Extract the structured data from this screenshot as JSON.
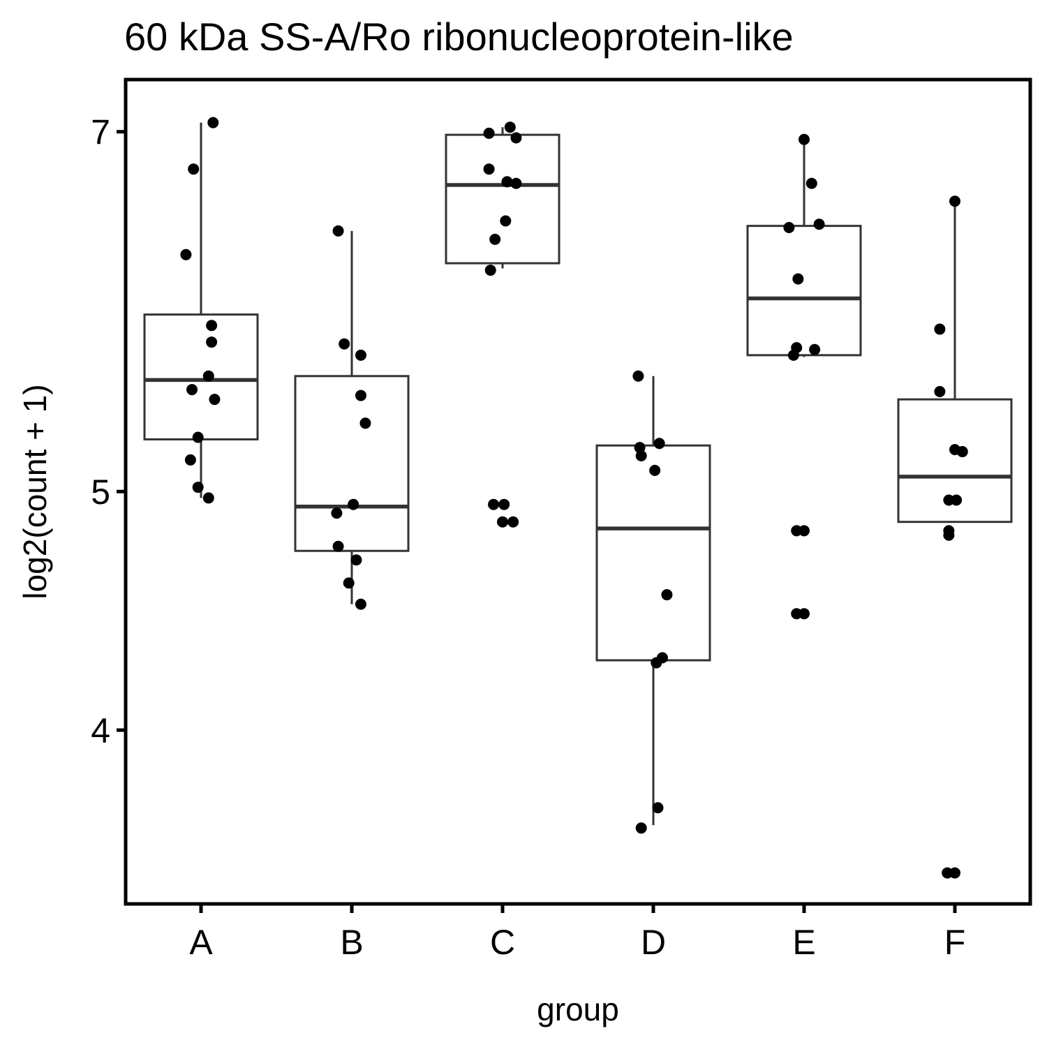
{
  "chart_data": {
    "type": "boxplot",
    "title": "60 kDa SS-A/Ro ribonucleoprotein-like",
    "xlabel": "group",
    "ylabel": "log2(count + 1)",
    "scale": "log2",
    "y_ticks": [
      4,
      5,
      7
    ],
    "ylim": [
      3.4,
      7.35
    ],
    "grid": false,
    "legend": "none",
    "colors": {
      "box_stroke": "#333333",
      "point": "#000000",
      "frame": "#000000"
    },
    "categories": [
      "A",
      "B",
      "C",
      "D",
      "E",
      "F"
    ],
    "boxes": [
      {
        "group": "A",
        "whisker_low": 4.97,
        "q1": 5.25,
        "median": 5.55,
        "q3": 5.9,
        "whisker_high": 7.06
      },
      {
        "group": "B",
        "whisker_low": 4.5,
        "q1": 4.73,
        "median": 4.93,
        "q3": 5.57,
        "whisker_high": 6.38
      },
      {
        "group": "C",
        "whisker_low": 6.16,
        "q1": 6.19,
        "median": 6.66,
        "q3": 6.98,
        "whisker_high": 7.03
      },
      {
        "group": "D",
        "whisker_low": 3.66,
        "q1": 4.27,
        "median": 4.83,
        "q3": 5.22,
        "whisker_high": 5.57
      },
      {
        "group": "E",
        "whisker_low": 5.67,
        "q1": 5.68,
        "median": 5.99,
        "q3": 6.41,
        "whisker_high": 6.95
      },
      {
        "group": "F",
        "whisker_low": 4.86,
        "q1": 4.86,
        "median": 5.07,
        "q3": 5.45,
        "whisker_high": 6.56
      }
    ],
    "points": [
      {
        "group": "A",
        "dx": 0.08,
        "y": 7.06
      },
      {
        "group": "A",
        "dx": -0.05,
        "y": 6.76
      },
      {
        "group": "A",
        "dx": -0.1,
        "y": 6.24
      },
      {
        "group": "A",
        "dx": 0.07,
        "y": 5.84
      },
      {
        "group": "A",
        "dx": 0.07,
        "y": 5.75
      },
      {
        "group": "A",
        "dx": 0.05,
        "y": 5.57
      },
      {
        "group": "A",
        "dx": -0.06,
        "y": 5.5
      },
      {
        "group": "A",
        "dx": 0.09,
        "y": 5.45
      },
      {
        "group": "A",
        "dx": -0.02,
        "y": 5.26
      },
      {
        "group": "A",
        "dx": -0.07,
        "y": 5.15
      },
      {
        "group": "A",
        "dx": -0.02,
        "y": 5.02
      },
      {
        "group": "A",
        "dx": 0.05,
        "y": 4.97
      },
      {
        "group": "B",
        "dx": -0.09,
        "y": 6.38
      },
      {
        "group": "B",
        "dx": -0.05,
        "y": 5.74
      },
      {
        "group": "B",
        "dx": 0.06,
        "y": 5.68
      },
      {
        "group": "B",
        "dx": 0.06,
        "y": 5.47
      },
      {
        "group": "B",
        "dx": 0.09,
        "y": 5.33
      },
      {
        "group": "B",
        "dx": 0.01,
        "y": 4.94
      },
      {
        "group": "B",
        "dx": -0.1,
        "y": 4.9
      },
      {
        "group": "B",
        "dx": -0.09,
        "y": 4.75
      },
      {
        "group": "B",
        "dx": 0.03,
        "y": 4.69
      },
      {
        "group": "B",
        "dx": -0.02,
        "y": 4.59
      },
      {
        "group": "B",
        "dx": 0.06,
        "y": 4.5
      },
      {
        "group": "C",
        "dx": 0.05,
        "y": 7.03
      },
      {
        "group": "C",
        "dx": -0.09,
        "y": 6.99
      },
      {
        "group": "C",
        "dx": 0.09,
        "y": 6.96
      },
      {
        "group": "C",
        "dx": -0.09,
        "y": 6.76
      },
      {
        "group": "C",
        "dx": 0.03,
        "y": 6.68
      },
      {
        "group": "C",
        "dx": 0.09,
        "y": 6.67
      },
      {
        "group": "C",
        "dx": 0.02,
        "y": 6.44
      },
      {
        "group": "C",
        "dx": -0.05,
        "y": 6.33
      },
      {
        "group": "C",
        "dx": -0.08,
        "y": 6.15
      },
      {
        "group": "C",
        "dx": -0.06,
        "y": 4.94
      },
      {
        "group": "C",
        "dx": 0.01,
        "y": 4.94
      },
      {
        "group": "C",
        "dx": 0.0,
        "y": 4.86
      },
      {
        "group": "C",
        "dx": 0.07,
        "y": 4.86
      },
      {
        "group": "D",
        "dx": -0.1,
        "y": 5.57
      },
      {
        "group": "D",
        "dx": 0.04,
        "y": 5.23
      },
      {
        "group": "D",
        "dx": -0.09,
        "y": 5.21
      },
      {
        "group": "D",
        "dx": -0.08,
        "y": 5.17
      },
      {
        "group": "D",
        "dx": 0.01,
        "y": 5.1
      },
      {
        "group": "D",
        "dx": 0.09,
        "y": 4.54
      },
      {
        "group": "D",
        "dx": 0.06,
        "y": 4.28
      },
      {
        "group": "D",
        "dx": 0.02,
        "y": 4.26
      },
      {
        "group": "D",
        "dx": 0.03,
        "y": 3.72
      },
      {
        "group": "D",
        "dx": -0.08,
        "y": 3.65
      },
      {
        "group": "E",
        "dx": 0.0,
        "y": 6.95
      },
      {
        "group": "E",
        "dx": 0.05,
        "y": 6.67
      },
      {
        "group": "E",
        "dx": 0.1,
        "y": 6.42
      },
      {
        "group": "E",
        "dx": -0.1,
        "y": 6.4
      },
      {
        "group": "E",
        "dx": -0.04,
        "y": 6.1
      },
      {
        "group": "E",
        "dx": -0.05,
        "y": 5.72
      },
      {
        "group": "E",
        "dx": 0.07,
        "y": 5.71
      },
      {
        "group": "E",
        "dx": -0.07,
        "y": 5.68
      },
      {
        "group": "E",
        "dx": -0.05,
        "y": 4.82
      },
      {
        "group": "E",
        "dx": 0.0,
        "y": 4.82
      },
      {
        "group": "E",
        "dx": -0.05,
        "y": 4.46
      },
      {
        "group": "E",
        "dx": 0.0,
        "y": 4.46
      },
      {
        "group": "F",
        "dx": 0.0,
        "y": 6.56
      },
      {
        "group": "F",
        "dx": -0.1,
        "y": 5.82
      },
      {
        "group": "F",
        "dx": -0.1,
        "y": 5.49
      },
      {
        "group": "F",
        "dx": 0.0,
        "y": 5.2
      },
      {
        "group": "F",
        "dx": 0.05,
        "y": 5.19
      },
      {
        "group": "F",
        "dx": -0.04,
        "y": 4.96
      },
      {
        "group": "F",
        "dx": 0.01,
        "y": 4.96
      },
      {
        "group": "F",
        "dx": -0.04,
        "y": 4.82
      },
      {
        "group": "F",
        "dx": -0.04,
        "y": 4.8
      },
      {
        "group": "F",
        "dx": 0.0,
        "y": 3.5
      },
      {
        "group": "F",
        "dx": -0.05,
        "y": 3.5
      }
    ]
  }
}
